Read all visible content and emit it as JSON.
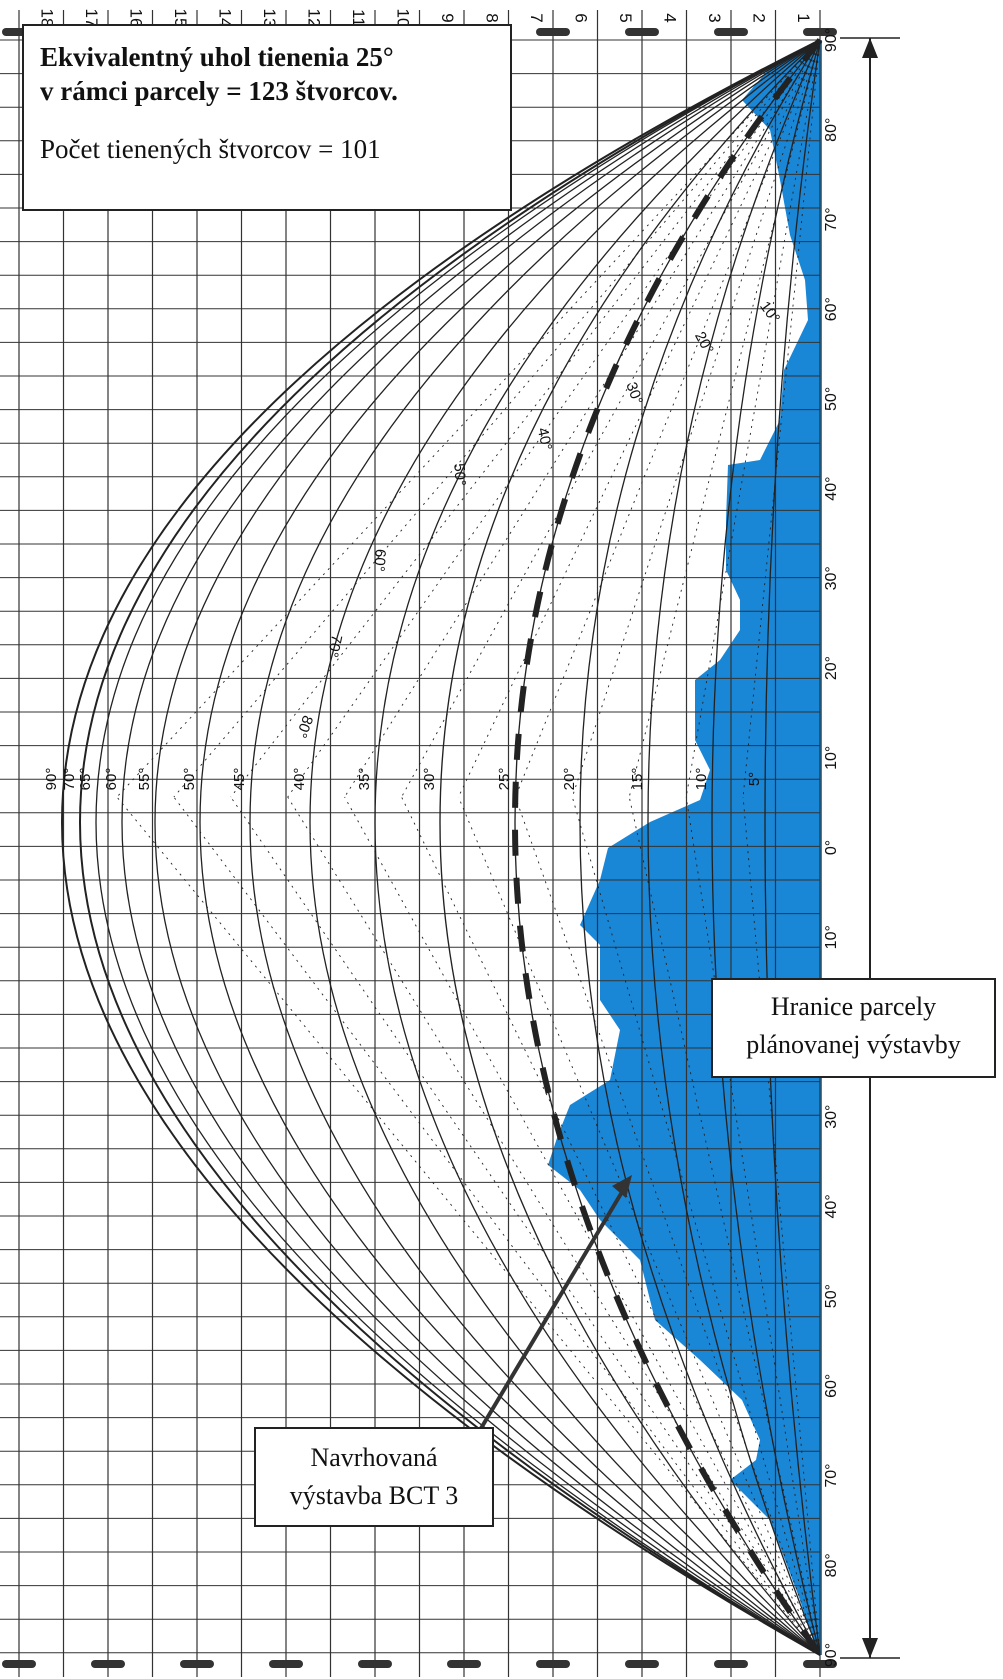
{
  "info_box": {
    "line1": "Ekvivalentný uhol tienenia  25°",
    "line2": "v rámci parcely = 123 štvorcov.",
    "line3": "Počet tienených štvorcov = 101"
  },
  "parcel_box": {
    "line1": "Hranice parcely",
    "line2": "plánovanej výstavby"
  },
  "proposed_box": {
    "line1": "Navrhovaná",
    "line2": "výstavba BCT 3"
  },
  "column_numbers": [
    "18",
    "17",
    "16",
    "15",
    "14",
    "13",
    "12",
    "11",
    "10",
    "9",
    "8",
    "7",
    "6",
    "5",
    "4",
    "3",
    "2",
    "1"
  ],
  "side_angle_labels": [
    "90°",
    "80°",
    "70°",
    "60°",
    "50°",
    "40°",
    "30°",
    "20°",
    "10°",
    "0°",
    "10°",
    "20°",
    "30°",
    "40°",
    "50°",
    "60°",
    "70°",
    "80°",
    "90°"
  ],
  "altitude_labels": [
    "90°",
    "70°",
    "65°",
    "60°",
    "55°",
    "50°",
    "45°",
    "40°",
    "35°",
    "30°",
    "25°",
    "20°",
    "15°",
    "10°",
    "5°"
  ],
  "azimuth_labels": [
    "80°",
    "70°",
    "60°",
    "50°",
    "40°",
    "30°",
    "20°",
    "10°"
  ],
  "colors": {
    "shading": "#1a86d6",
    "line": "#222222",
    "grid": "#333333",
    "background": "#ffffff"
  }
}
